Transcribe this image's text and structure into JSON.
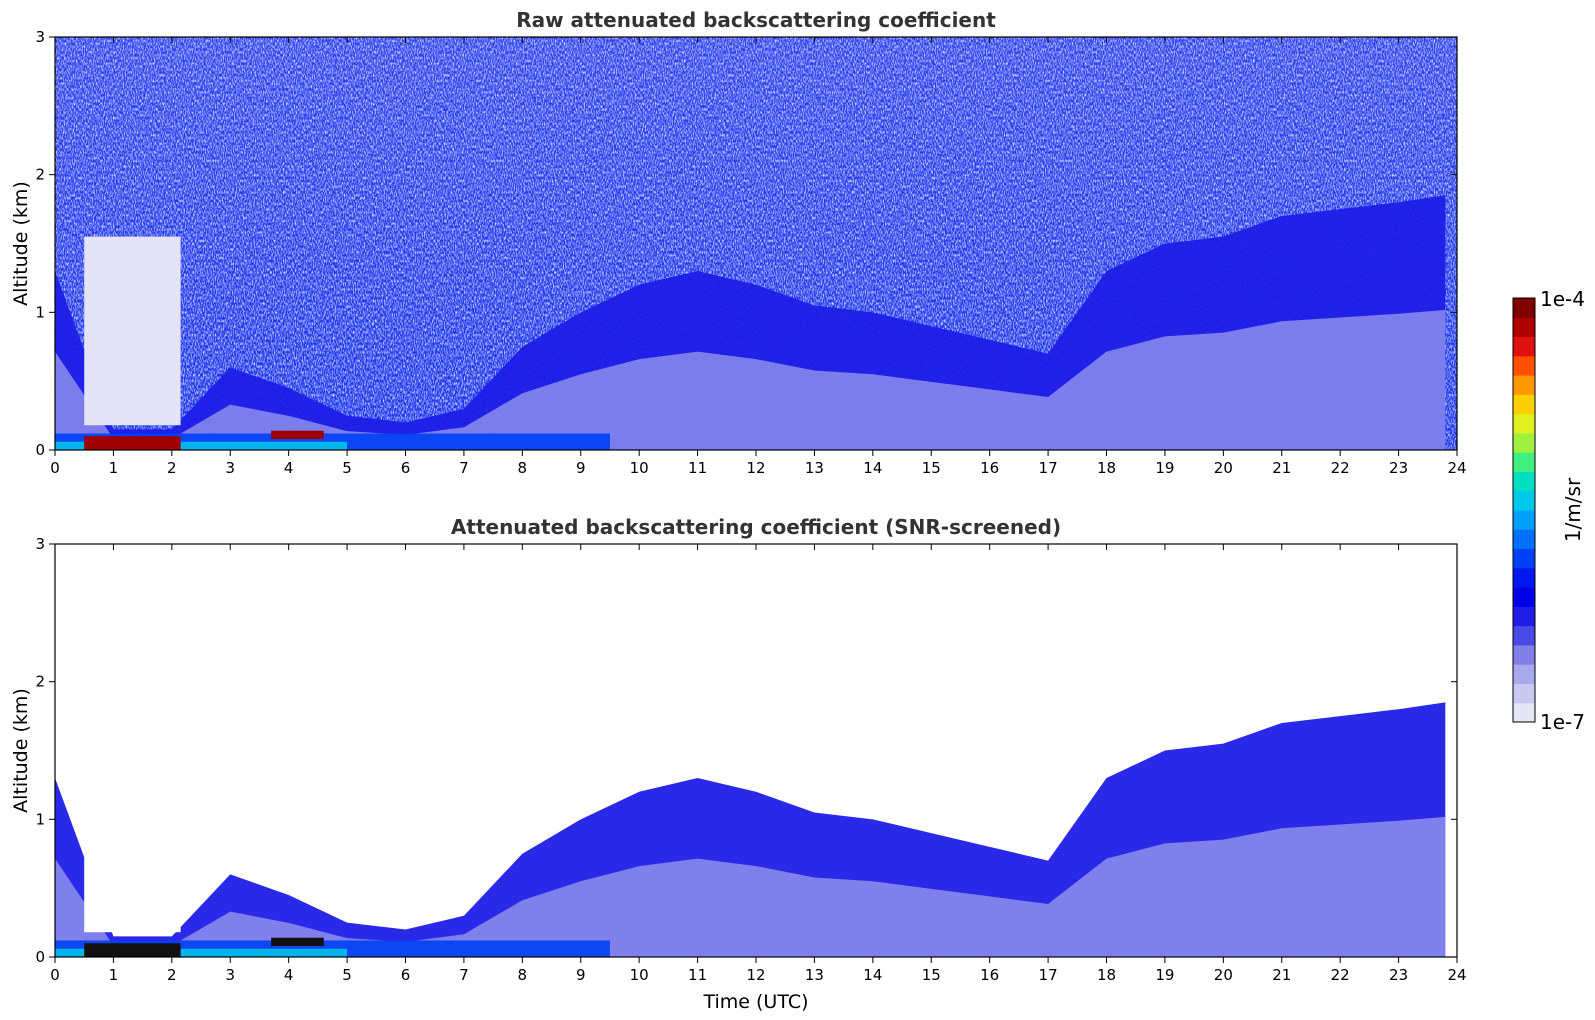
{
  "chart_data": [
    {
      "type": "heatmap",
      "title": "Raw attenuated backscattering coefficient",
      "xlabel": "",
      "ylabel": "Altitude (km)",
      "xlim": [
        0,
        24
      ],
      "ylim": [
        0,
        3
      ],
      "x_ticks": [
        "0",
        "1",
        "2",
        "3",
        "4",
        "5",
        "6",
        "7",
        "8",
        "9",
        "10",
        "11",
        "12",
        "13",
        "14",
        "15",
        "16",
        "17",
        "18",
        "19",
        "20",
        "21",
        "22",
        "23",
        "24"
      ],
      "y_ticks": [
        "0",
        "1",
        "2",
        "3"
      ],
      "screened": false,
      "features": [
        {
          "kind": "boundary_layer",
          "x": [
            0,
            1,
            2,
            3,
            4,
            5,
            6,
            7,
            8,
            9,
            10,
            11,
            12,
            13,
            14,
            15,
            16,
            17,
            18,
            19,
            20,
            21,
            22,
            23,
            23.8
          ],
          "top_km": [
            1.3,
            0.15,
            0.15,
            0.6,
            0.45,
            0.25,
            0.2,
            0.3,
            0.75,
            1.0,
            1.2,
            1.3,
            1.2,
            1.05,
            1.0,
            0.9,
            0.8,
            0.7,
            1.3,
            1.5,
            1.55,
            1.7,
            1.75,
            1.8,
            1.85
          ]
        },
        {
          "kind": "low_cloud",
          "x_start": 0.5,
          "x_end": 2.15,
          "bottom_km": 0.0,
          "top_km": 0.1,
          "level": "1e-4"
        },
        {
          "kind": "low_cloud",
          "x_start": 3.7,
          "x_end": 4.6,
          "bottom_km": 0.08,
          "top_km": 0.14,
          "level": "1e-4"
        }
      ]
    },
    {
      "type": "heatmap",
      "title": "Attenuated backscattering coefficient (SNR-screened)",
      "xlabel": "Time (UTC)",
      "ylabel": "Altitude (km)",
      "xlim": [
        0,
        24
      ],
      "ylim": [
        0,
        3
      ],
      "x_ticks": [
        "0",
        "1",
        "2",
        "3",
        "4",
        "5",
        "6",
        "7",
        "8",
        "9",
        "10",
        "11",
        "12",
        "13",
        "14",
        "15",
        "16",
        "17",
        "18",
        "19",
        "20",
        "21",
        "22",
        "23",
        "24"
      ],
      "y_ticks": [
        "0",
        "1",
        "2",
        "3"
      ],
      "screened": true
    }
  ],
  "colorbar": {
    "label": "1/m/sr",
    "max_label": "1e-4",
    "min_label": "1e-7",
    "colors": [
      "#e6e6f5",
      "#c8c8f0",
      "#a8a8ec",
      "#8080e8",
      "#4a4ae6",
      "#1e1ee6",
      "#0000e6",
      "#0018ee",
      "#0040f5",
      "#0070fa",
      "#00a0ff",
      "#00c8e8",
      "#00e0c0",
      "#40f080",
      "#a0f040",
      "#e0f020",
      "#ffd000",
      "#ff9800",
      "#ff5000",
      "#e01010",
      "#b00000",
      "#800000"
    ]
  }
}
